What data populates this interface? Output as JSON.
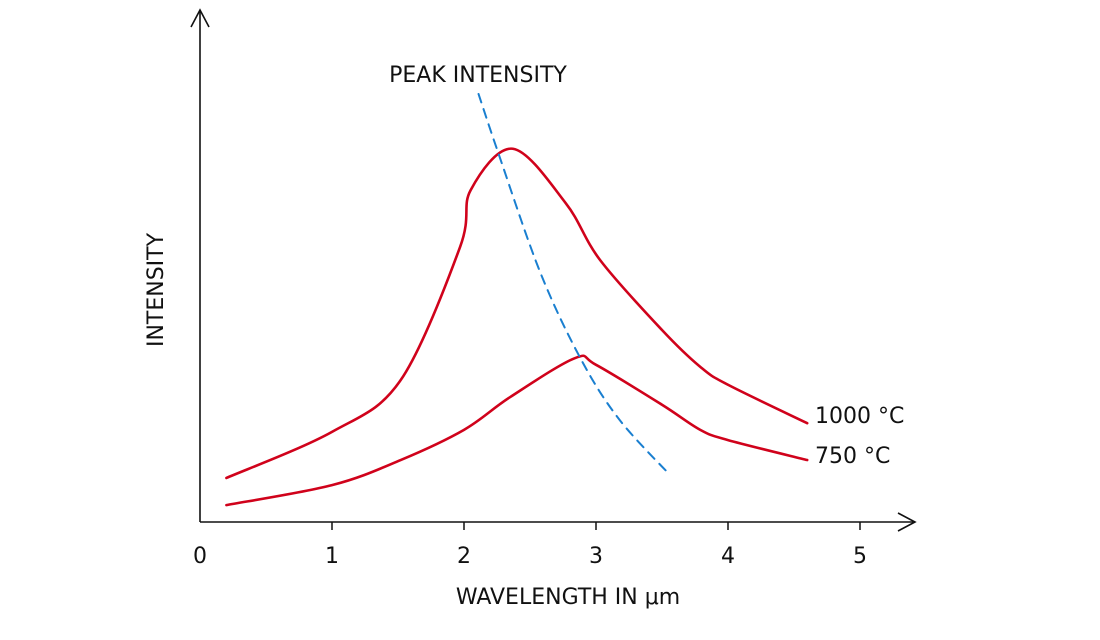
{
  "chart_data": {
    "type": "line",
    "title": "",
    "xlabel": "WAVELENGTH IN μm",
    "ylabel": "INTENSITY",
    "xlim": [
      0,
      5.4
    ],
    "ylim": [
      0,
      100
    ],
    "xticks": [
      "0",
      "1",
      "2",
      "3",
      "4",
      "5"
    ],
    "grid": false,
    "series": [
      {
        "name": "1000 °C",
        "color": "#d0021b",
        "style": "solid",
        "x": [
          0.2,
          1.0,
          1.52,
          1.97,
          2.05,
          2.37,
          2.77,
          3.03,
          3.5,
          3.79,
          4.0,
          4.6
        ],
        "y": [
          8.6,
          17.6,
          27.7,
          53.7,
          64.8,
          72.9,
          62.3,
          51.2,
          37.5,
          30.3,
          26.8,
          19.3
        ]
      },
      {
        "name": "750 °C",
        "color": "#d0021b",
        "style": "solid",
        "x": [
          0.2,
          1.0,
          1.52,
          2.0,
          2.35,
          2.84,
          3.0,
          3.5,
          3.79,
          4.0,
          4.6
        ],
        "y": [
          3.3,
          7.2,
          12.1,
          18.0,
          24.4,
          32.0,
          30.7,
          22.9,
          18.0,
          16.0,
          12.1
        ]
      },
      {
        "name": "PEAK INTENSITY",
        "color": "#1a7fd0",
        "style": "dashed",
        "x": [
          2.11,
          2.27,
          2.58,
          2.89,
          3.18,
          3.56
        ],
        "y": [
          83.6,
          71.3,
          48.6,
          31.6,
          19.9,
          9.2
        ]
      }
    ]
  }
}
